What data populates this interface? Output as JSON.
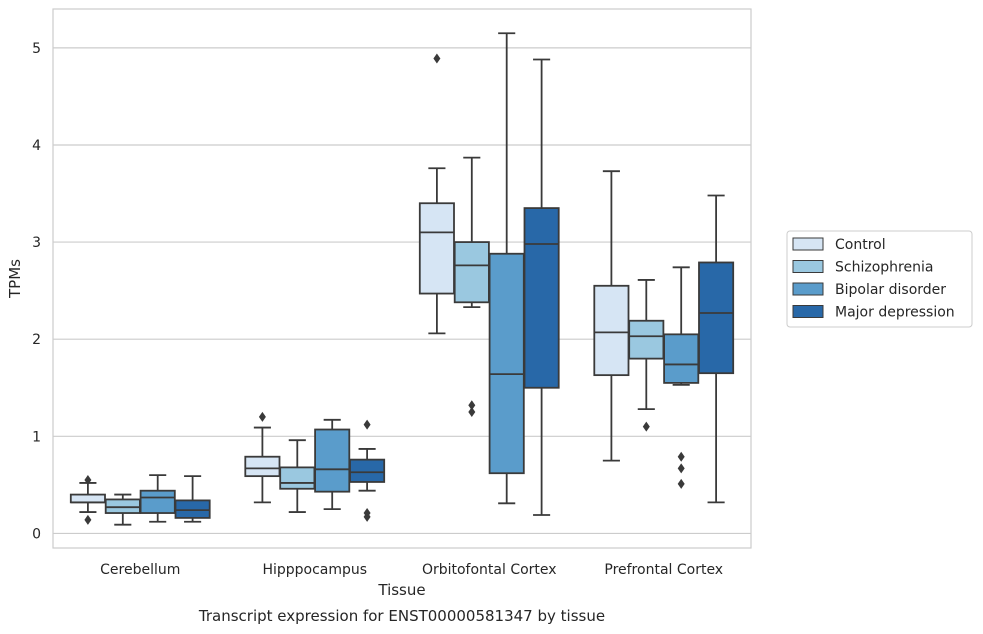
{
  "caption": "Transcript expression for ENST00000581347 by tissue",
  "chart_data": {
    "type": "box",
    "title": "",
    "xlabel": "Tissue",
    "ylabel": "TPMs",
    "ylim": [
      -0.15,
      5.4
    ],
    "yticks": [
      "0",
      "1",
      "2",
      "3",
      "4",
      "5"
    ],
    "ytick_values": [
      0,
      1,
      2,
      3,
      4,
      5
    ],
    "grid": "horizontal",
    "legend": "right",
    "categories": [
      "Cerebellum",
      "Hipppocampus",
      "Orbitofontal Cortex",
      "Prefrontal Cortex"
    ],
    "series": [
      {
        "name": "Control",
        "color": "#d6e5f4",
        "boxes": [
          {
            "whislo": 0.22,
            "q1": 0.32,
            "med": 0.32,
            "q3": 0.4,
            "whishi": 0.52,
            "fliers": [
              0.14,
              0.55
            ]
          },
          {
            "whislo": 0.32,
            "q1": 0.59,
            "med": 0.67,
            "q3": 0.79,
            "whishi": 1.09,
            "fliers": [
              1.2
            ]
          },
          {
            "whislo": 2.06,
            "q1": 2.47,
            "med": 3.1,
            "q3": 3.4,
            "whishi": 3.76,
            "fliers": [
              4.89
            ]
          },
          {
            "whislo": 0.75,
            "q1": 1.63,
            "med": 2.07,
            "q3": 2.55,
            "whishi": 3.73,
            "fliers": []
          }
        ]
      },
      {
        "name": "Schizophrenia",
        "color": "#9ac8e0",
        "boxes": [
          {
            "whislo": 0.09,
            "q1": 0.21,
            "med": 0.27,
            "q3": 0.35,
            "whishi": 0.4,
            "fliers": []
          },
          {
            "whislo": 0.22,
            "q1": 0.46,
            "med": 0.52,
            "q3": 0.68,
            "whishi": 0.96,
            "fliers": []
          },
          {
            "whislo": 2.33,
            "q1": 2.38,
            "med": 2.76,
            "q3": 3.0,
            "whishi": 3.87,
            "fliers": [
              1.25,
              1.32
            ]
          },
          {
            "whislo": 1.28,
            "q1": 1.8,
            "med": 2.03,
            "q3": 2.19,
            "whishi": 2.61,
            "fliers": [
              1.1
            ]
          }
        ]
      },
      {
        "name": "Bipolar disorder",
        "color": "#5a9ccb",
        "boxes": [
          {
            "whislo": 0.12,
            "q1": 0.21,
            "med": 0.37,
            "q3": 0.44,
            "whishi": 0.6,
            "fliers": []
          },
          {
            "whislo": 0.25,
            "q1": 0.43,
            "med": 0.66,
            "q3": 1.07,
            "whishi": 1.17,
            "fliers": []
          },
          {
            "whislo": 0.31,
            "q1": 0.62,
            "med": 1.64,
            "q3": 2.88,
            "whishi": 5.15,
            "fliers": []
          },
          {
            "whislo": 1.53,
            "q1": 1.55,
            "med": 1.74,
            "q3": 2.05,
            "whishi": 2.74,
            "fliers": [
              0.51,
              0.67,
              0.79
            ]
          }
        ]
      },
      {
        "name": "Major depression",
        "color": "#2868a8",
        "boxes": [
          {
            "whislo": 0.12,
            "q1": 0.16,
            "med": 0.24,
            "q3": 0.34,
            "whishi": 0.59,
            "fliers": []
          },
          {
            "whislo": 0.44,
            "q1": 0.53,
            "med": 0.63,
            "q3": 0.76,
            "whishi": 0.87,
            "fliers": [
              0.17,
              0.21,
              1.12
            ]
          },
          {
            "whislo": 0.19,
            "q1": 1.5,
            "med": 2.98,
            "q3": 3.35,
            "whishi": 4.88,
            "fliers": []
          },
          {
            "whislo": 0.32,
            "q1": 1.65,
            "med": 2.27,
            "q3": 2.79,
            "whishi": 3.48,
            "fliers": []
          }
        ]
      }
    ]
  }
}
